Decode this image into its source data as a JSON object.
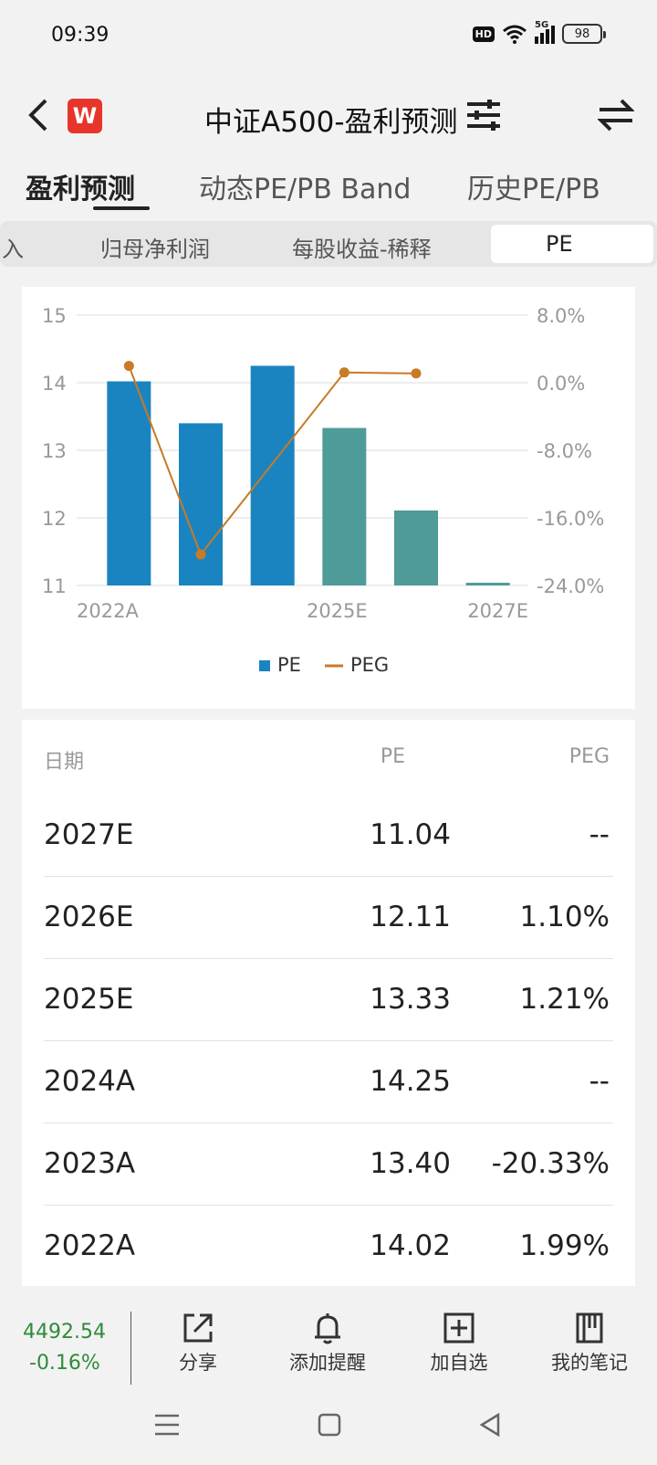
{
  "status_bar": {
    "time": "09:39",
    "hd": "HD",
    "network": "5G",
    "battery": "98",
    "icons": [
      "hd-icon",
      "wifi-icon",
      "signal-icon",
      "battery-icon"
    ]
  },
  "header": {
    "title": "中证A500-盈利预测",
    "logo_text": "W",
    "icons": [
      "back-icon",
      "logo-icon",
      "filter-icon",
      "swap-icon"
    ],
    "accent": "#e8352b"
  },
  "tabs": [
    {
      "label": "盈利预测",
      "active": true
    },
    {
      "label": "动态PE/PB Band",
      "active": false
    },
    {
      "label": "历史PE/PB",
      "active": false
    }
  ],
  "subtabs": [
    {
      "label": "入",
      "active": false
    },
    {
      "label": "归母净利润",
      "active": false
    },
    {
      "label": "每股收益-稀释",
      "active": false
    },
    {
      "label": "PE",
      "active": true
    }
  ],
  "chart_data": {
    "type": "bar",
    "title": "",
    "categories": [
      "2022A",
      "2023A",
      "2024A",
      "2025E",
      "2026E",
      "2027E"
    ],
    "x_tick_labels": [
      "2022A",
      "2025E",
      "2027E"
    ],
    "series": [
      {
        "name": "PE",
        "type": "bar",
        "values": [
          14.02,
          13.4,
          14.25,
          13.33,
          12.11,
          11.04
        ],
        "colors": [
          "#1a84c0",
          "#1a84c0",
          "#1a84c0",
          "#4e9b9a",
          "#4e9b9a",
          "#4e9b9a"
        ]
      },
      {
        "name": "PEG",
        "type": "line",
        "values": [
          1.99,
          -20.33,
          null,
          1.21,
          1.1,
          null
        ],
        "color": "#c87a25"
      }
    ],
    "y_left": {
      "ylim": [
        11,
        15
      ],
      "ticks": [
        "15",
        "14",
        "13",
        "12",
        "11"
      ]
    },
    "y_right": {
      "ylim": [
        -24,
        8
      ],
      "ticks": [
        "8.0%",
        "0.0%",
        "-8.0%",
        "-16.0%",
        "-24.0%"
      ]
    },
    "grid": true,
    "legend_position": "bottom"
  },
  "table": {
    "headers": {
      "date": "日期",
      "pe": "PE",
      "peg": "PEG"
    },
    "rows": [
      {
        "date": "2027E",
        "pe": "11.04",
        "peg": "--"
      },
      {
        "date": "2026E",
        "pe": "12.11",
        "peg": "1.10%"
      },
      {
        "date": "2025E",
        "pe": "13.33",
        "peg": "1.21%"
      },
      {
        "date": "2024A",
        "pe": "14.25",
        "peg": "--"
      },
      {
        "date": "2023A",
        "pe": "13.40",
        "peg": "-20.33%"
      },
      {
        "date": "2022A",
        "pe": "14.02",
        "peg": "1.99%"
      }
    ]
  },
  "bottom_bar": {
    "price": "4492.54",
    "change": "-0.16%",
    "price_color": "#2e8b3a",
    "actions": [
      {
        "label": "分享",
        "icon": "share-icon"
      },
      {
        "label": "添加提醒",
        "icon": "bell-icon"
      },
      {
        "label": "加自选",
        "icon": "add-watchlist-icon"
      },
      {
        "label": "我的笔记",
        "icon": "notebook-icon"
      }
    ]
  },
  "nav_bar": {
    "icons": [
      "menu-icon",
      "home-icon",
      "back-nav-icon"
    ]
  }
}
